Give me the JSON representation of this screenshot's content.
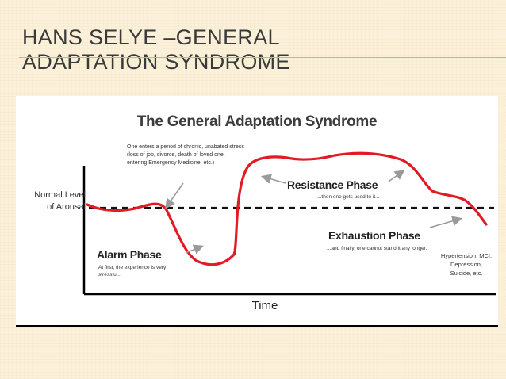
{
  "slide": {
    "title": "HANS SELYE –GENERAL ADAPTATION SYNDROME"
  },
  "diagram": {
    "title": "The General Adaptation Syndrome",
    "y_axis_label": "Normal Level\nof Arousal",
    "x_axis_label": "Time",
    "stress_note": "One enters a period of chronic, unabated stress (loss of job, divorce, death of loved one, entering Emergency Medicine, etc.)",
    "phases": [
      {
        "name": "Alarm Phase",
        "description": "At first, the experience is very stressful..."
      },
      {
        "name": "Resistance Phase",
        "description": "...then one gets used to it..."
      },
      {
        "name": "Exhaustion Phase",
        "description": "...and finally, one cannot stand it any longer."
      }
    ],
    "outcomes": "Hypertension, MCI,\nDepression,\nSuicide, etc.",
    "colors": {
      "curve": "#e01b24",
      "baseline": "#111111",
      "arrow": "#9a9a9a",
      "title_rule": "#e8b04a"
    }
  }
}
